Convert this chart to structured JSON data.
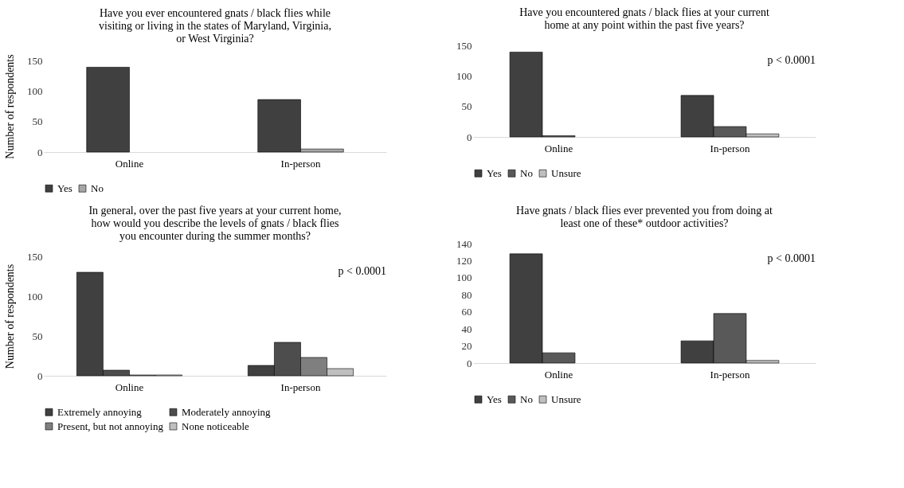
{
  "chart_data": [
    {
      "type": "bar",
      "title": "Have you ever encountered gnats / black flies  while visiting or living in the states of Maryland, Virginia,   or West Virginia?",
      "ylabel": "Number of respondents",
      "categories": [
        "Online",
        "In-person"
      ],
      "ylim": [
        0,
        150
      ],
      "yticks": [
        0,
        50,
        100,
        150
      ],
      "grid": false,
      "legend": "bottom",
      "series": [
        {
          "name": "Yes",
          "color": "#404040",
          "values": [
            139,
            86
          ]
        },
        {
          "name": "No",
          "color": "#a6a6a6",
          "values": [
            0,
            5
          ]
        }
      ]
    },
    {
      "type": "bar",
      "title": "Have you encountered gnats / black flies at your current home at any point within the past five years?",
      "annotations": [
        "p < 0.0001"
      ],
      "categories": [
        "Online",
        "In-person"
      ],
      "ylim": [
        0,
        150
      ],
      "yticks": [
        0,
        50,
        100,
        150
      ],
      "grid": false,
      "legend": "bottom",
      "series": [
        {
          "name": "Yes",
          "color": "#404040",
          "values": [
            139,
            68
          ]
        },
        {
          "name": "No",
          "color": "#595959",
          "values": [
            2,
            17
          ]
        },
        {
          "name": "Unsure",
          "color": "#bfbfbf",
          "values": [
            0,
            5
          ]
        }
      ]
    },
    {
      "type": "bar",
      "title": "In general, over the past five years at your current home, how would you describe the levels of gnats / black flies you encounter during the summer months?",
      "ylabel": "Number of respondents",
      "annotations": [
        "p < 0.0001"
      ],
      "categories": [
        "Online",
        "In-person"
      ],
      "ylim": [
        0,
        150
      ],
      "yticks": [
        0,
        50,
        100,
        150
      ],
      "grid": false,
      "legend": "bottom",
      "series": [
        {
          "name": "Extremely annoying",
          "color": "#404040",
          "values": [
            130,
            13
          ]
        },
        {
          "name": "Moderately annoying",
          "color": "#4d4d4d",
          "values": [
            7,
            42
          ]
        },
        {
          "name": "Present, but not annoying",
          "color": "#7f7f7f",
          "values": [
            1,
            23
          ]
        },
        {
          "name": "None noticeable",
          "color": "#bfbfbf",
          "values": [
            1,
            9
          ]
        }
      ]
    },
    {
      "type": "bar",
      "title": "Have gnats / black flies ever prevented you from doing at least one of these* outdoor activities?",
      "annotations": [
        "p < 0.0001"
      ],
      "categories": [
        "Online",
        "In-person"
      ],
      "ylim": [
        0,
        140
      ],
      "yticks": [
        0,
        20,
        40,
        60,
        80,
        100,
        120,
        140
      ],
      "grid": false,
      "legend": "bottom",
      "series": [
        {
          "name": "Yes",
          "color": "#404040",
          "values": [
            128,
            26
          ]
        },
        {
          "name": "No",
          "color": "#595959",
          "values": [
            12,
            58
          ]
        },
        {
          "name": "Unsure",
          "color": "#bfbfbf",
          "values": [
            0,
            3
          ]
        }
      ]
    }
  ]
}
